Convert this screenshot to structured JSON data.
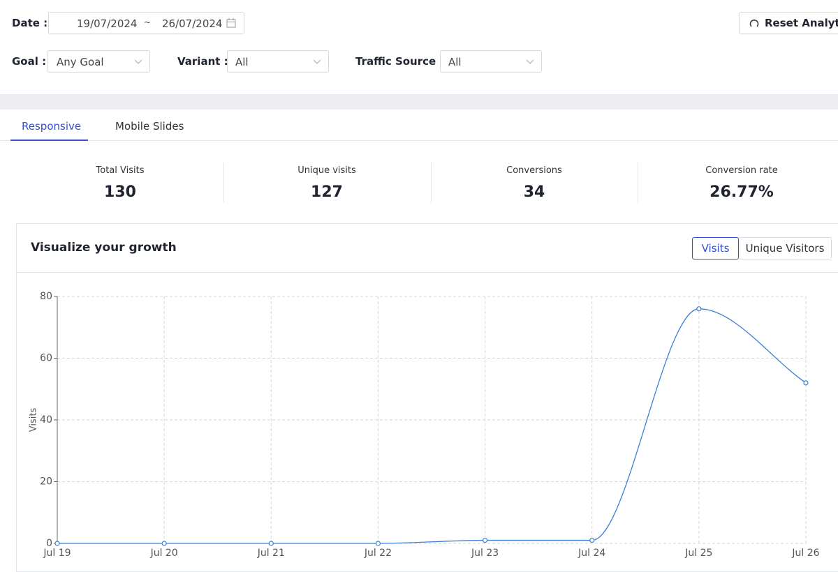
{
  "filters": {
    "date": {
      "label": "Date :",
      "start": "19/07/2024",
      "separator": "~",
      "end": "26/07/2024"
    },
    "goal": {
      "label": "Goal :",
      "value": "Any Goal"
    },
    "variant": {
      "label": "Variant :",
      "value": "All"
    },
    "traffic_source": {
      "label": "Traffic Source :",
      "value": "All"
    }
  },
  "reset_button": "Reset Analytics",
  "tabs": [
    "Responsive",
    "Mobile Slides"
  ],
  "stats": [
    {
      "label": "Total Visits",
      "value": "130"
    },
    {
      "label": "Unique visits",
      "value": "127"
    },
    {
      "label": "Conversions",
      "value": "34"
    },
    {
      "label": "Conversion rate",
      "value": "26.77%"
    }
  ],
  "chart_card": {
    "title": "Visualize your growth",
    "toggles": [
      "Visits",
      "Unique Visitors"
    ]
  },
  "chart_data": {
    "type": "line",
    "y_label": "Visits",
    "categories": [
      "Jul 19",
      "Jul 20",
      "Jul 21",
      "Jul 22",
      "Jul 23",
      "Jul 24",
      "Jul 25",
      "Jul 26"
    ],
    "values": [
      0,
      0,
      0,
      0,
      1,
      1,
      76,
      52
    ],
    "color": "#3d7fd6",
    "ylim": [
      0,
      80
    ],
    "yticks": [
      0,
      20,
      40,
      60,
      80
    ],
    "grid": true
  }
}
